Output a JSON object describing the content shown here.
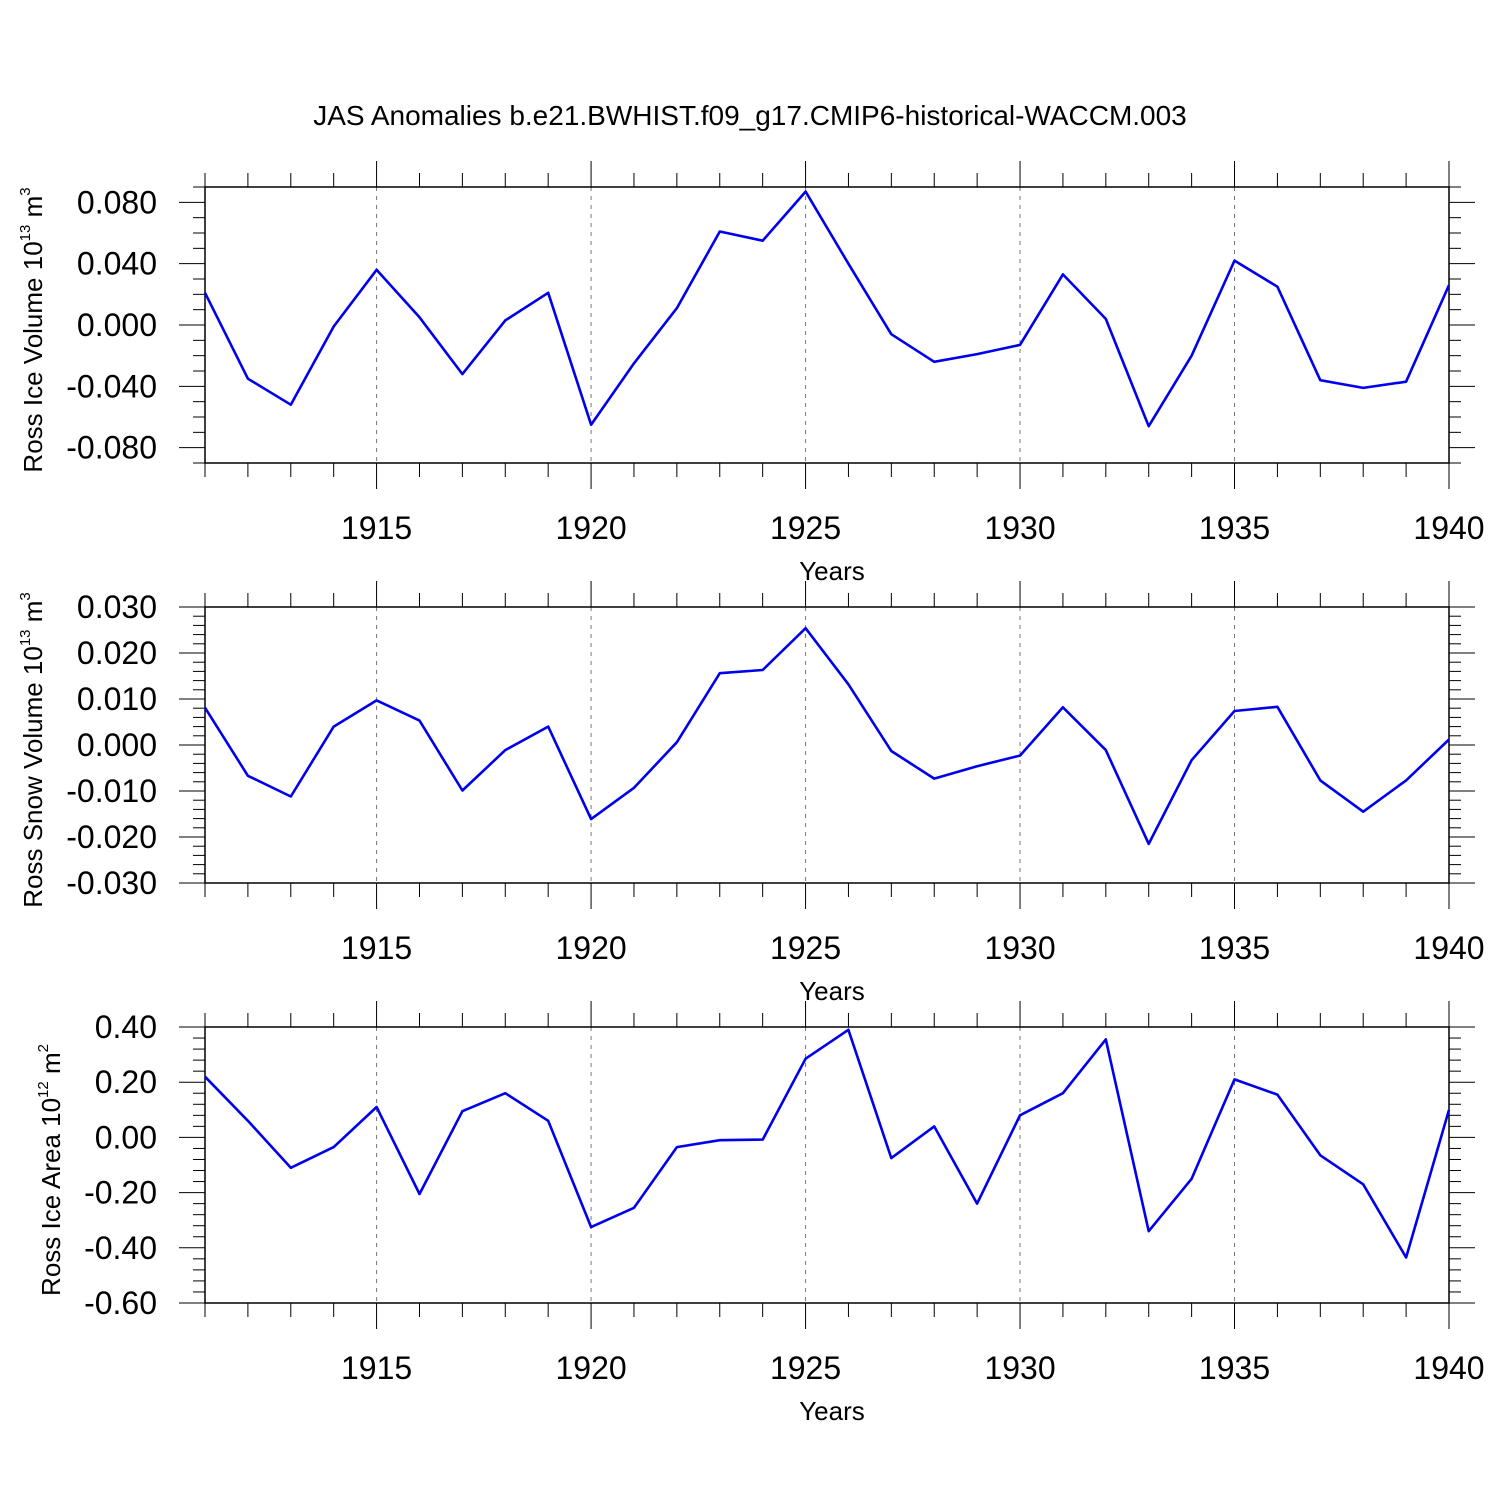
{
  "title": "JAS Anomalies b.e21.BWHIST.f09_g17.CMIP6-historical-WACCM.003",
  "line_color": "#0000ee",
  "chart_data": [
    {
      "type": "line",
      "ylabel": {
        "text": "Ross Ice Volume 10",
        "exp": "13",
        "unit": " m",
        "unit_exp": "3"
      },
      "xlabel": "Years",
      "xlim": [
        1911,
        1940
      ],
      "ylim": [
        -0.09,
        0.09
      ],
      "x_ticks": [
        1915,
        1920,
        1925,
        1930,
        1935,
        1940
      ],
      "y_ticks": [
        0.08,
        0.04,
        0.0,
        -0.04,
        -0.08
      ],
      "y_tick_labels": [
        "0.080",
        "0.040",
        "0.000",
        "-0.040",
        "-0.080"
      ],
      "y_minor_step": 0.01,
      "grid": "vertical-dashed",
      "x": [
        1911,
        1912,
        1913,
        1914,
        1915,
        1916,
        1917,
        1918,
        1919,
        1920,
        1921,
        1922,
        1923,
        1924,
        1925,
        1926,
        1927,
        1928,
        1929,
        1930,
        1931,
        1932,
        1933,
        1934,
        1935,
        1936,
        1937,
        1938,
        1939,
        1940
      ],
      "values": [
        0.021,
        -0.035,
        -0.052,
        -0.001,
        0.036,
        0.005,
        -0.032,
        0.003,
        0.021,
        -0.065,
        -0.025,
        0.011,
        0.061,
        0.055,
        0.087,
        0.04,
        -0.006,
        -0.024,
        -0.019,
        -0.013,
        0.033,
        0.004,
        -0.066,
        -0.02,
        0.042,
        0.025,
        -0.036,
        -0.041,
        -0.037,
        0.026
      ]
    },
    {
      "type": "line",
      "ylabel": {
        "text": "Ross Snow Volume 10",
        "exp": "13",
        "unit": " m",
        "unit_exp": "3"
      },
      "xlabel": "Years",
      "xlim": [
        1911,
        1940
      ],
      "ylim": [
        -0.03,
        0.03
      ],
      "x_ticks": [
        1915,
        1920,
        1925,
        1930,
        1935,
        1940
      ],
      "y_ticks": [
        0.03,
        0.02,
        0.01,
        0.0,
        -0.01,
        -0.02,
        -0.03
      ],
      "y_tick_labels": [
        "0.030",
        "0.020",
        "0.010",
        "0.000",
        "-0.010",
        "-0.020",
        "-0.030"
      ],
      "y_minor_step": 0.002,
      "grid": "vertical-dashed",
      "x": [
        1911,
        1912,
        1913,
        1914,
        1915,
        1916,
        1917,
        1918,
        1919,
        1920,
        1921,
        1922,
        1923,
        1924,
        1925,
        1926,
        1927,
        1928,
        1929,
        1930,
        1931,
        1932,
        1933,
        1934,
        1935,
        1936,
        1937,
        1938,
        1939,
        1940
      ],
      "values": [
        0.0081,
        -0.0067,
        -0.0112,
        0.004,
        0.0097,
        0.0053,
        -0.0099,
        -0.0011,
        0.004,
        -0.0161,
        -0.0093,
        0.0006,
        0.0156,
        0.0163,
        0.0254,
        0.0132,
        -0.0013,
        -0.0073,
        -0.0046,
        -0.0023,
        0.0082,
        -0.0011,
        -0.0215,
        -0.0033,
        0.0074,
        0.0083,
        -0.0077,
        -0.0145,
        -0.0077,
        0.0012
      ]
    },
    {
      "type": "line",
      "ylabel": {
        "text": "Ross Ice Area 10",
        "exp": "12",
        "unit": " m",
        "unit_exp": "2"
      },
      "xlabel": "Years",
      "xlim": [
        1911,
        1940
      ],
      "ylim": [
        -0.6,
        0.4
      ],
      "x_ticks": [
        1915,
        1920,
        1925,
        1930,
        1935,
        1940
      ],
      "y_ticks": [
        0.4,
        0.2,
        0.0,
        -0.2,
        -0.4,
        -0.6
      ],
      "y_tick_labels": [
        "0.40",
        "0.20",
        "0.00",
        "-0.20",
        "-0.40",
        "-0.60"
      ],
      "y_minor_step": 0.04,
      "grid": "vertical-dashed",
      "x": [
        1911,
        1912,
        1913,
        1914,
        1915,
        1916,
        1917,
        1918,
        1919,
        1920,
        1921,
        1922,
        1923,
        1924,
        1925,
        1926,
        1927,
        1928,
        1929,
        1930,
        1931,
        1932,
        1933,
        1934,
        1935,
        1936,
        1937,
        1938,
        1939,
        1940
      ],
      "values": [
        0.22,
        0.06,
        -0.11,
        -0.035,
        0.11,
        -0.205,
        0.095,
        0.16,
        0.06,
        -0.325,
        -0.255,
        -0.035,
        -0.01,
        -0.008,
        0.285,
        0.39,
        -0.075,
        0.04,
        -0.24,
        0.08,
        0.16,
        0.355,
        -0.34,
        -0.15,
        0.21,
        0.155,
        -0.065,
        -0.17,
        -0.435,
        0.1
      ]
    }
  ]
}
